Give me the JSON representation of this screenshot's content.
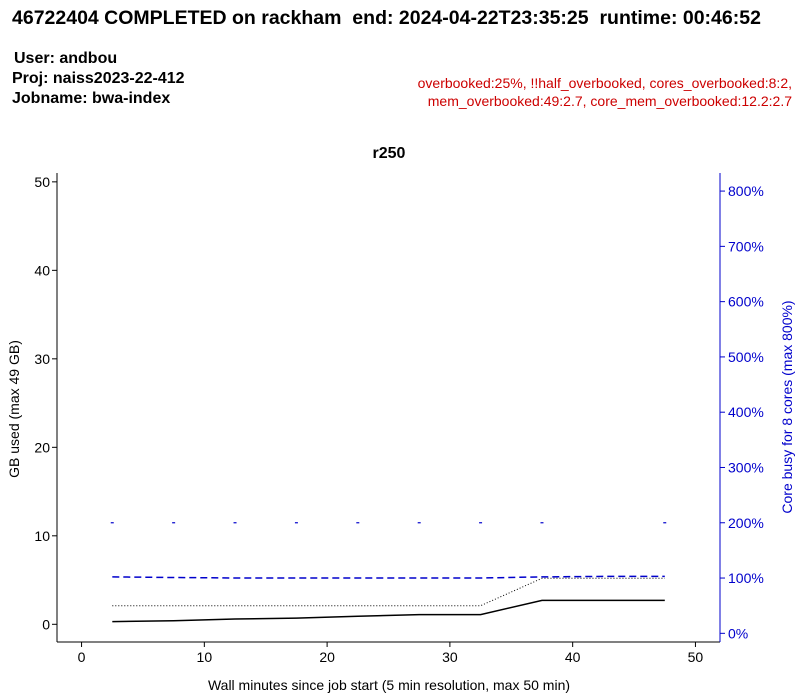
{
  "header": {
    "title": "46722404 COMPLETED on rackham  end: 2024-04-22T23:35:25  runtime: 00:46:52",
    "user": "User: andbou",
    "project": "Proj: naiss2023-22-412",
    "jobname": "Jobname: bwa-index",
    "flags_line1": "overbooked:25%,  !!half_overbooked,  cores_overbooked:8:2,",
    "flags_line2": "mem_overbooked:49:2.7,  core_mem_overbooked:12.2:2.7"
  },
  "colors": {
    "memory": "#000000",
    "cores": "#0000cc",
    "flags": "#cc0000"
  },
  "chart_data": {
    "type": "line",
    "title": "r250",
    "xlabel": "Wall minutes since job start (5 min resolution, max 50 min)",
    "ylabel": "GB used (max 49 GB)",
    "y2label": "Core busy for 8 cores (max 800%)",
    "xlim": [
      -2,
      52
    ],
    "ylim": [
      -2,
      51
    ],
    "y2lim": [
      -15.7,
      832.7
    ],
    "xticks": [
      0,
      10,
      20,
      30,
      40,
      50
    ],
    "yticks": [
      0,
      10,
      20,
      30,
      40,
      50
    ],
    "y2ticks": [
      0,
      100,
      200,
      300,
      400,
      500,
      600,
      700,
      800
    ],
    "y2tick_labels": [
      "0%",
      "100%",
      "200%",
      "300%",
      "400%",
      "500%",
      "600%",
      "700%",
      "800%"
    ],
    "x": [
      2.5,
      7.5,
      12.5,
      17.5,
      22.5,
      27.5,
      32.5,
      37.5,
      42.5,
      47.5
    ],
    "series": [
      {
        "style": "solid",
        "axis": "left",
        "color": "#000000",
        "values": [
          0.3,
          0.4,
          0.6,
          0.7,
          0.9,
          1.1,
          1.1,
          2.7,
          2.7,
          2.7
        ]
      },
      {
        "style": "dotted",
        "axis": "left",
        "color": "#000000",
        "values": [
          2.1,
          2.1,
          2.1,
          2.1,
          2.1,
          2.1,
          2.1,
          5.2,
          5.2,
          5.2
        ]
      },
      {
        "style": "dashed",
        "axis": "right",
        "color": "#0000cc",
        "values": [
          102,
          101,
          100,
          100,
          100,
          100,
          100,
          102,
          103,
          103
        ]
      },
      {
        "style": "markers",
        "axis": "right",
        "color": "#0000cc",
        "x": [
          2.5,
          7.5,
          12.5,
          17.5,
          22.5,
          27.5,
          32.5,
          37.5,
          47.5
        ],
        "values": [
          200,
          200,
          200,
          200,
          200,
          200,
          200,
          200,
          200
        ]
      }
    ]
  }
}
